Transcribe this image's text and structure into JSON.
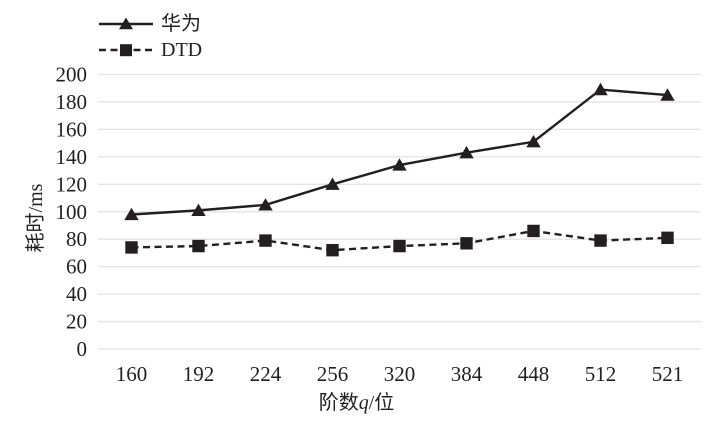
{
  "chart_data": {
    "type": "line",
    "title": "",
    "categories": [
      "160",
      "192",
      "224",
      "256",
      "320",
      "384",
      "448",
      "512",
      "521"
    ],
    "series": [
      {
        "name": "华为",
        "marker": "triangle",
        "line": "solid",
        "values": [
          98,
          101,
          105,
          120,
          134,
          143,
          151,
          189,
          185
        ]
      },
      {
        "name": "DTD",
        "marker": "square",
        "line": "dashed",
        "values": [
          74,
          75,
          79,
          72,
          75,
          77,
          86,
          79,
          81
        ]
      }
    ],
    "xlabel": "阶数q/位",
    "xlabel_parts": {
      "prefix": "阶数",
      "italic": "q",
      "suffix": "/位"
    },
    "ylabel": "耗时/ms",
    "ylim": [
      0,
      200
    ],
    "ytick_step": 20,
    "yticks": [
      "0",
      "20",
      "40",
      "60",
      "80",
      "100",
      "120",
      "140",
      "160",
      "180",
      "200"
    ],
    "grid": "horizontal-only",
    "legend_position": "top-left"
  },
  "colors": {
    "ink": "#231f20",
    "grid": "#e3e3e3",
    "text": "#231f20",
    "background": "#ffffff"
  }
}
